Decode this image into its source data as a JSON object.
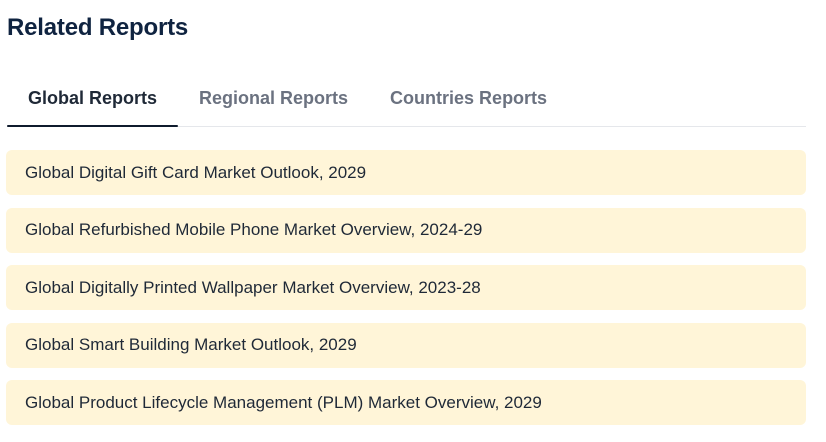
{
  "section": {
    "title": "Related Reports"
  },
  "tabs": [
    {
      "label": "Global Reports",
      "active": true
    },
    {
      "label": "Regional Reports",
      "active": false
    },
    {
      "label": "Countries Reports",
      "active": false
    }
  ],
  "reports": [
    {
      "title": "Global Digital Gift Card Market Outlook, 2029"
    },
    {
      "title": "Global Refurbished Mobile Phone Market Overview, 2024-29"
    },
    {
      "title": "Global Digitally Printed Wallpaper Market Overview, 2023-28"
    },
    {
      "title": "Global Smart Building Market Outlook, 2029"
    },
    {
      "title": "Global Product Lifecycle Management (PLM) Market Overview, 2029"
    }
  ],
  "colors": {
    "title": "#0f2340",
    "active_tab_text": "#1f2937",
    "inactive_tab_text": "#6b7280",
    "active_tab_underline": "#0f1b2d",
    "item_background": "#fff5d8"
  }
}
